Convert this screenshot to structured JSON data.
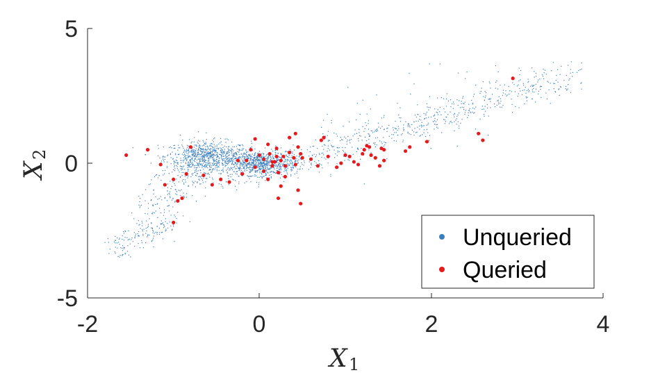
{
  "chart_data": {
    "type": "scatter",
    "xlabel_main": "X",
    "xlabel_sub": "1",
    "ylabel_main": "X",
    "ylabel_sub": "2",
    "xlim": [
      -2,
      4
    ],
    "ylim": [
      -5,
      5
    ],
    "xticks": [
      "-2",
      "0",
      "2",
      "4"
    ],
    "yticks": [
      "5",
      "0",
      "-5"
    ],
    "grid": false,
    "legend_position": "bottom-right",
    "series": [
      {
        "name": "Unqueried",
        "color": "#3a7ec0",
        "marker": "small dot",
        "clusters": [
          {
            "shape": "blob",
            "cx": -0.6,
            "cy": 0.25,
            "sx": 0.25,
            "sy": 0.28,
            "n": 700
          },
          {
            "shape": "blob",
            "cx": 0.0,
            "cy": 0.0,
            "sx": 0.22,
            "sy": 0.22,
            "n": 800
          },
          {
            "shape": "band",
            "x0": -0.6,
            "y0": 0.5,
            "x1": -1.3,
            "y1": -1.9,
            "spread": 0.35,
            "n": 250
          },
          {
            "shape": "band",
            "x0": -1.0,
            "y0": -2.2,
            "x1": -1.7,
            "y1": -3.1,
            "spread": 0.25,
            "n": 150
          },
          {
            "shape": "band",
            "x0": 0.3,
            "y0": 0.0,
            "x1": 3.7,
            "y1": 3.3,
            "spread": 0.3,
            "n": 550
          },
          {
            "shape": "band",
            "x0": 0.6,
            "y0": 0.6,
            "x1": 3.0,
            "y1": 3.0,
            "spread": 0.7,
            "n": 100
          },
          {
            "shape": "band",
            "x0": -0.8,
            "y0": -0.5,
            "x1": 0.3,
            "y1": -0.3,
            "spread": 0.25,
            "n": 120
          }
        ]
      },
      {
        "name": "Queried",
        "color": "#e41a1c",
        "marker": "dot",
        "points": [
          [
            -1.55,
            0.3
          ],
          [
            -1.3,
            0.5
          ],
          [
            -1.15,
            -0.05
          ],
          [
            -1.1,
            -0.8
          ],
          [
            -1.0,
            -0.6
          ],
          [
            -0.95,
            -1.4
          ],
          [
            -0.9,
            -1.3
          ],
          [
            -1.0,
            -2.2
          ],
          [
            -0.85,
            -0.4
          ],
          [
            -0.8,
            0.6
          ],
          [
            -0.65,
            -0.45
          ],
          [
            -0.55,
            -0.8
          ],
          [
            -0.45,
            -0.6
          ],
          [
            -0.35,
            -0.7
          ],
          [
            -0.2,
            -0.4
          ],
          [
            -0.15,
            0.1
          ],
          [
            -0.1,
            0.5
          ],
          [
            -0.05,
            0.9
          ],
          [
            -0.05,
            -0.15
          ],
          [
            0.0,
            0.3
          ],
          [
            0.05,
            0.15
          ],
          [
            0.05,
            -0.3
          ],
          [
            0.1,
            -0.6
          ],
          [
            0.1,
            0.7
          ],
          [
            0.12,
            0.35
          ],
          [
            0.15,
            -0.1
          ],
          [
            0.18,
            0.05
          ],
          [
            0.2,
            0.55
          ],
          [
            0.22,
            -0.35
          ],
          [
            0.25,
            0.1
          ],
          [
            0.25,
            -0.85
          ],
          [
            0.28,
            0.25
          ],
          [
            0.3,
            -0.5
          ],
          [
            0.35,
            0.4
          ],
          [
            0.4,
            0.2
          ],
          [
            0.42,
            -0.05
          ],
          [
            0.45,
            0.6
          ],
          [
            0.45,
            -1.0
          ],
          [
            0.48,
            0.35
          ],
          [
            0.2,
            0.25
          ],
          [
            0.15,
            0.05
          ],
          [
            0.35,
            0.95
          ],
          [
            0.42,
            1.1
          ],
          [
            0.48,
            -1.5
          ],
          [
            0.22,
            -1.3
          ],
          [
            0.6,
            0.15
          ],
          [
            0.68,
            -0.1
          ],
          [
            0.72,
            0.85
          ],
          [
            0.75,
            0.95
          ],
          [
            0.8,
            0.25
          ],
          [
            0.9,
            -0.15
          ],
          [
            0.95,
            0.0
          ],
          [
            1.0,
            0.3
          ],
          [
            1.05,
            0.25
          ],
          [
            1.1,
            0.05
          ],
          [
            1.15,
            -0.05
          ],
          [
            1.2,
            0.35
          ],
          [
            1.22,
            0.5
          ],
          [
            1.25,
            0.65
          ],
          [
            1.28,
            0.6
          ],
          [
            1.3,
            0.3
          ],
          [
            1.35,
            0.2
          ],
          [
            1.42,
            0.55
          ],
          [
            1.45,
            0.5
          ],
          [
            1.45,
            0.1
          ],
          [
            1.4,
            -0.1
          ],
          [
            1.7,
            0.45
          ],
          [
            1.75,
            0.6
          ],
          [
            1.95,
            0.8
          ],
          [
            2.55,
            1.1
          ],
          [
            2.6,
            0.85
          ],
          [
            2.95,
            3.15
          ],
          [
            0.5,
            0.2
          ],
          [
            -0.25,
            0.1
          ],
          [
            0.3,
            -0.1
          ]
        ]
      }
    ]
  }
}
